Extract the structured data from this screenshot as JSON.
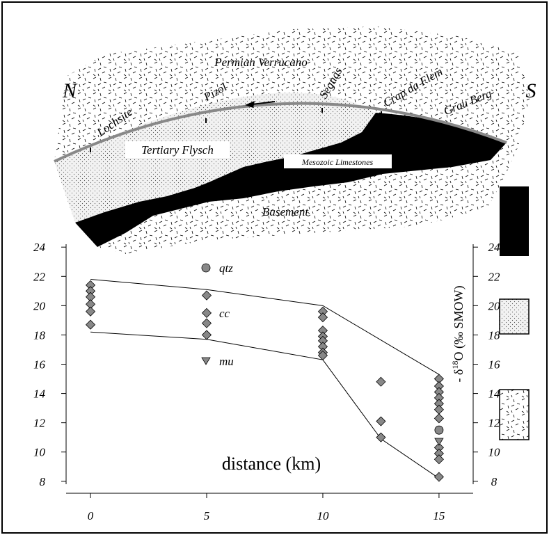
{
  "cross_section": {
    "north": "N",
    "south": "S",
    "top_unit": "Permian Verrucano",
    "localities": [
      "Lochsite",
      "Pizol",
      "Segnas",
      "Crap da Flem",
      "Grau Berg"
    ],
    "units": [
      "Tertiary Flysch",
      "Mesozoic Limestones",
      "Basement"
    ]
  },
  "chart_data": {
    "type": "scatter",
    "x_label": "distance (km)",
    "y_label": [
      "- δ",
      "18",
      "O (‰ SMOW)"
    ],
    "xlim": [
      -1.05,
      16.47
    ],
    "xticks": [
      0,
      5,
      10,
      15
    ],
    "ylim": [
      7.8,
      24.2
    ],
    "yticks": [
      8,
      10,
      12,
      14,
      16,
      18,
      20,
      22,
      24
    ],
    "series": [
      {
        "name": "qtz",
        "marker": "circle",
        "color": "#888888",
        "x": [
          15
        ],
        "y": [
          11.5
        ]
      },
      {
        "name": "cc",
        "marker": "diamond",
        "color": "#888888",
        "x": [
          0,
          0,
          0,
          0,
          0,
          0,
          5,
          5,
          5,
          5,
          10,
          10,
          10,
          10,
          10,
          10,
          10,
          10,
          12.5,
          12.5,
          12.5,
          15,
          15,
          15,
          15,
          15,
          15,
          15,
          15,
          15,
          15,
          15
        ],
        "y": [
          21.4,
          21.0,
          20.6,
          20.1,
          19.6,
          18.7,
          20.7,
          19.5,
          18.8,
          18.0,
          19.6,
          19.2,
          18.3,
          17.9,
          17.6,
          17.2,
          16.8,
          16.6,
          14.8,
          12.1,
          11.0,
          15.0,
          14.5,
          14.1,
          13.7,
          13.3,
          12.9,
          12.3,
          10.3,
          9.9,
          9.5,
          8.3
        ]
      },
      {
        "name": "mu",
        "marker": "triangle",
        "color": "#888888",
        "x": [
          15
        ],
        "y": [
          10.7
        ]
      }
    ],
    "envelope": [
      {
        "x": [
          0,
          5,
          10,
          15
        ],
        "y": [
          21.8,
          21.1,
          20.0,
          15.3
        ]
      },
      {
        "x": [
          0,
          5,
          10,
          12.5,
          15
        ],
        "y": [
          18.2,
          17.7,
          16.3,
          10.9,
          8.2
        ]
      }
    ]
  }
}
